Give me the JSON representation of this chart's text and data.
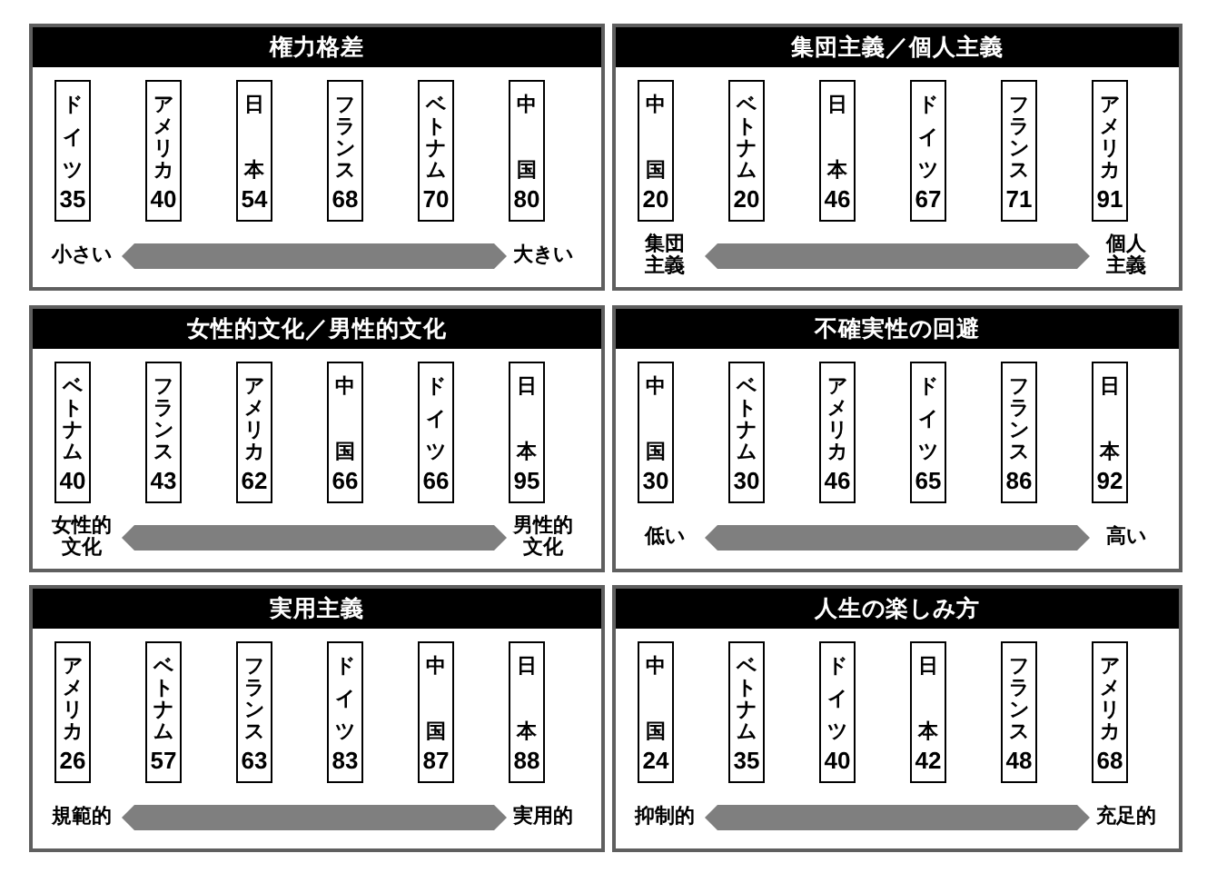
{
  "chart_data": [
    {
      "type": "other",
      "title": "権力格差",
      "categories": [
        "ドイツ",
        "アメリカ",
        "日本",
        "フランス",
        "ベトナム",
        "中国"
      ],
      "values": [
        35,
        40,
        54,
        68,
        70,
        80
      ],
      "data_labels": true,
      "annotations": [
        "小さい",
        "大きい"
      ]
    },
    {
      "type": "other",
      "title": "集団主義／個人主義",
      "categories": [
        "中国",
        "ベトナム",
        "日本",
        "ドイツ",
        "フランス",
        "アメリカ"
      ],
      "values": [
        20,
        20,
        46,
        67,
        71,
        91
      ],
      "data_labels": true,
      "annotations": [
        "集団主義",
        "個人主義"
      ]
    },
    {
      "type": "other",
      "title": "女性的文化／男性的文化",
      "categories": [
        "ベトナム",
        "フランス",
        "アメリカ",
        "中国",
        "ドイツ",
        "日本"
      ],
      "values": [
        40,
        43,
        62,
        66,
        66,
        95
      ],
      "data_labels": true,
      "annotations": [
        "女性的文化",
        "男性的文化"
      ]
    },
    {
      "type": "other",
      "title": "不確実性の回避",
      "categories": [
        "中国",
        "ベトナム",
        "アメリカ",
        "ドイツ",
        "フランス",
        "日本"
      ],
      "values": [
        30,
        30,
        46,
        65,
        86,
        92
      ],
      "data_labels": true,
      "annotations": [
        "低い",
        "高い"
      ]
    },
    {
      "type": "other",
      "title": "実用主義",
      "categories": [
        "アメリカ",
        "ベトナム",
        "フランス",
        "ドイツ",
        "中国",
        "日本"
      ],
      "values": [
        26,
        57,
        63,
        83,
        87,
        88
      ],
      "data_labels": true,
      "annotations": [
        "規範的",
        "実用的"
      ]
    },
    {
      "type": "other",
      "title": "人生の楽しみ方",
      "categories": [
        "中国",
        "ベトナム",
        "ドイツ",
        "日本",
        "フランス",
        "アメリカ"
      ],
      "values": [
        24,
        35,
        40,
        42,
        48,
        68
      ],
      "data_labels": true,
      "annotations": [
        "抑制的",
        "充足的"
      ]
    }
  ]
}
